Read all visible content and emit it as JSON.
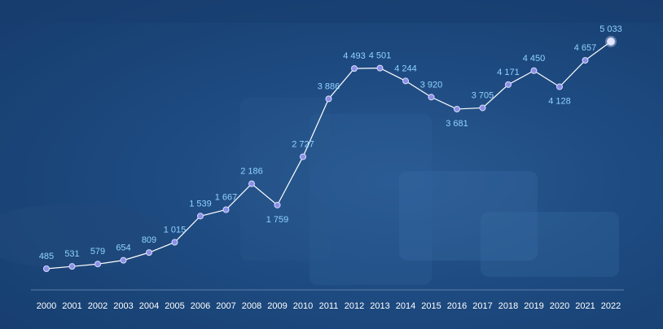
{
  "chart_data": {
    "type": "line",
    "categories": [
      "2000",
      "2001",
      "2002",
      "2003",
      "2004",
      "2005",
      "2006",
      "2007",
      "2008",
      "2009",
      "2010",
      "2011",
      "2012",
      "2013",
      "2014",
      "2015",
      "2016",
      "2017",
      "2018",
      "2019",
      "2020",
      "2021",
      "2022"
    ],
    "values": [
      485,
      531,
      579,
      654,
      809,
      1015,
      1539,
      1667,
      2186,
      1759,
      2727,
      3886,
      4493,
      4501,
      4244,
      3920,
      3681,
      3705,
      4171,
      4450,
      4128,
      4657,
      5033
    ],
    "value_labels": [
      "485",
      "531",
      "579",
      "654",
      "809",
      "1 015",
      "1 539",
      "1 667",
      "2 186",
      "1 759",
      "2 727",
      "3 886",
      "4 493",
      "4 501",
      "4 244",
      "3 920",
      "3 681",
      "3 705",
      "4 171",
      "4 450",
      "4 128",
      "4 657",
      "5 033"
    ],
    "title": "",
    "xlabel": "",
    "ylabel": "",
    "ylim": [
      0,
      5500
    ],
    "grid": false,
    "legend": "none",
    "colors": {
      "line": "#ffffff",
      "marker": "#8b8fe6",
      "highlight": "#e4e6ff",
      "value_label": "#8fd3ff",
      "tick_label": "#ffffff",
      "axis": "#5d7fa8"
    }
  }
}
